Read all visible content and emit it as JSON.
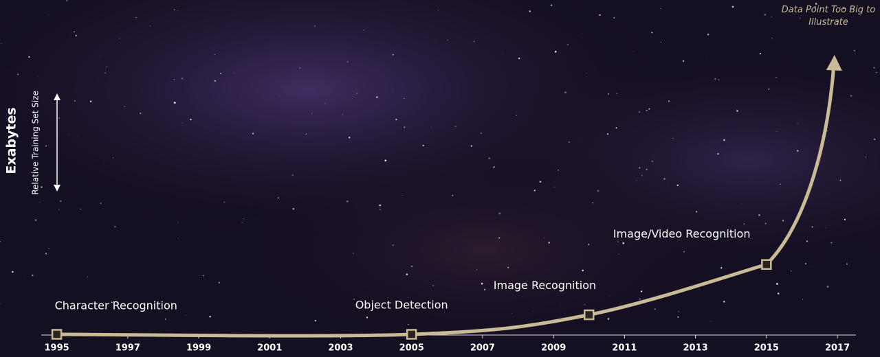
{
  "chart_data": {
    "type": "line",
    "y_label": "Exabytes",
    "y_sublabel": "Relative Training Set Size",
    "annotation": "Data Point Too Big to Illustrate",
    "x": [
      1995,
      2005,
      2010,
      2015
    ],
    "point_labels": [
      "Character Recognition",
      "Object Detection",
      "Image Recognition",
      "Image/Video Recognition"
    ],
    "values": [
      0,
      0,
      7,
      25
    ],
    "color": "#c8bb96",
    "xlim": [
      1993.4,
      2018.2
    ],
    "xticks": [
      1995,
      1997,
      1999,
      2001,
      2003,
      2005,
      2007,
      2009,
      2011,
      2013,
      2015,
      2017
    ],
    "ylim": [
      0,
      100
    ]
  }
}
